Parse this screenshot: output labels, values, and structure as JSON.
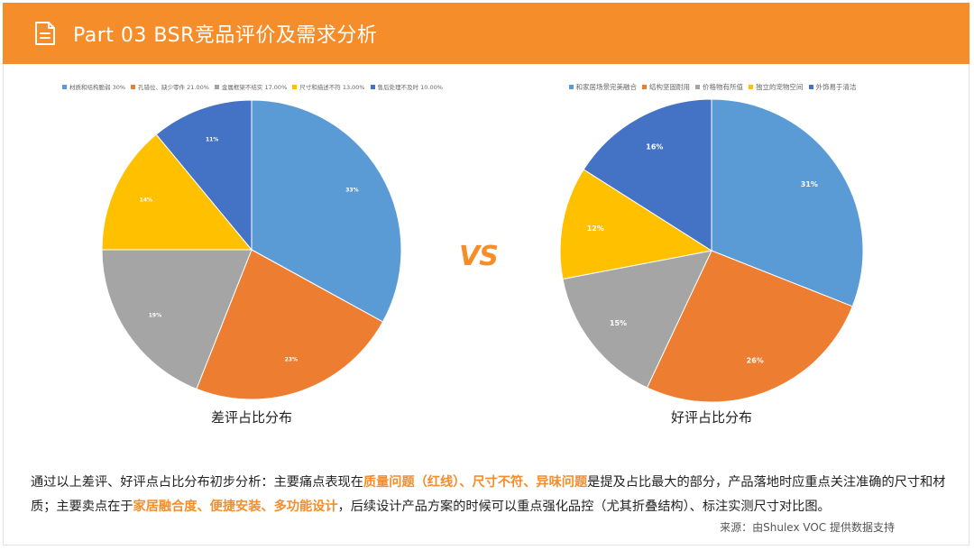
{
  "header": {
    "title": "Part 03  BSR竞品评价及需求分析",
    "icon": "document-icon"
  },
  "colors": {
    "accent": "#f58d2a",
    "header_bg": "#f58d2a",
    "slice_colors": [
      "#5b9bd5",
      "#ed7d31",
      "#a5a5a5",
      "#ffc000",
      "#4472c4"
    ]
  },
  "vs_label": "VS",
  "chart_data": [
    {
      "type": "pie",
      "caption": "差评占比分布",
      "legend_position": "top",
      "slices": [
        {
          "label": "材质和结构脆弱",
          "legend_text": "材质和结构脆弱 30%",
          "value": 33,
          "data_label": "33%"
        },
        {
          "label": "孔错位、缺少零件",
          "legend_text": "孔错位、缺少零件 21.00%",
          "value": 23,
          "data_label": "23%"
        },
        {
          "label": "金属框架不结实",
          "legend_text": "金属框架不结实 17.00%",
          "value": 19,
          "data_label": "19%"
        },
        {
          "label": "尺寸和描述不符",
          "legend_text": "尺寸和描述不符 13.00%",
          "value": 14,
          "data_label": "14%"
        },
        {
          "label": "售后处理不及时",
          "legend_text": "售后处理不及时 10.00%",
          "value": 11,
          "data_label": "11%"
        }
      ]
    },
    {
      "type": "pie",
      "caption": "好评占比分布",
      "legend_position": "top",
      "slices": [
        {
          "label": "和家居场景完美融合",
          "legend_text": "和家居场景完美融合",
          "value": 31,
          "data_label": "31%"
        },
        {
          "label": "结构坚固耐用",
          "legend_text": "结构坚固耐用",
          "value": 26,
          "data_label": "26%"
        },
        {
          "label": "价格物有所值",
          "legend_text": "价格物有所值",
          "value": 15,
          "data_label": "15%"
        },
        {
          "label": "独立的宠物空间",
          "legend_text": "独立的宠物空间",
          "value": 12,
          "data_label": "12%"
        },
        {
          "label": "外饰易于清洁",
          "legend_text": "外饰易于清洁",
          "value": 16,
          "data_label": "16%"
        }
      ]
    }
  ],
  "summary": {
    "p1": "通过以上差评、好评点占比分布初步分析：主要痛点表现在",
    "h1": "质量问题（红线）、尺寸不符、异味问题",
    "p2": "是提及占比最大的部分，产品落地时应重点关注准确的尺寸和材质；主要卖点在于",
    "h2": "家居融合度、便捷安装、多功能设计",
    "p3": "，后续设计产品方案的时候可以重点强化品控（尤其折叠结构）、标注实测尺寸对比图。"
  },
  "source": "来源：由Shulex VOC 提供数据支持"
}
